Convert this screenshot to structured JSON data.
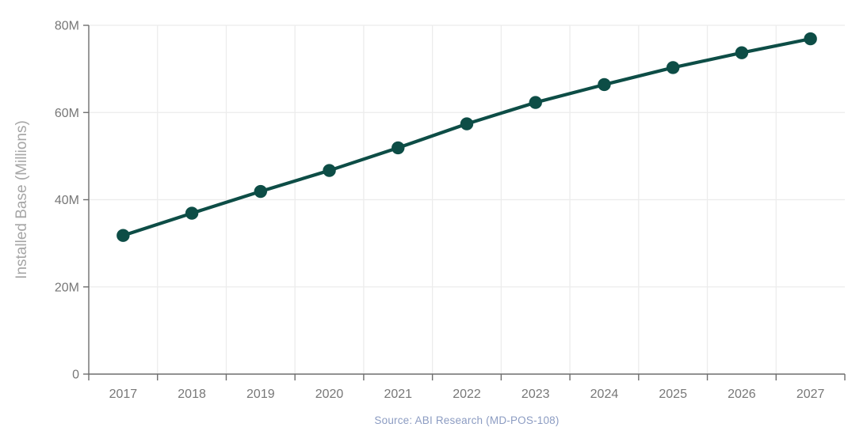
{
  "chart_data": {
    "type": "line",
    "title": "",
    "categories": [
      "2017",
      "2018",
      "2019",
      "2020",
      "2021",
      "2022",
      "2023",
      "2024",
      "2025",
      "2026",
      "2027"
    ],
    "series": [
      {
        "name": "Installed Base",
        "values": [
          31.8,
          36.9,
          41.9,
          46.7,
          51.9,
          57.4,
          62.3,
          66.4,
          70.3,
          73.7,
          76.9
        ]
      }
    ],
    "xlabel": "",
    "ylabel": "Installed Base (Millions)",
    "ylim": [
      0,
      80
    ],
    "ytick_step": 20,
    "ytick_labels": [
      "0",
      "20M",
      "40M",
      "60M",
      "80M"
    ],
    "grid": true,
    "legend": "none",
    "source": "Source: ABI Research (MD-POS-108)"
  },
  "colors": {
    "line": "#0d4d46",
    "marker": "#0d4d46",
    "axis": "#6e6e6e",
    "gridline": "#ececec",
    "tick_label": "#777777",
    "axis_title": "#a6a6a6",
    "source_text": "#8c9cc2",
    "background": "#ffffff"
  }
}
